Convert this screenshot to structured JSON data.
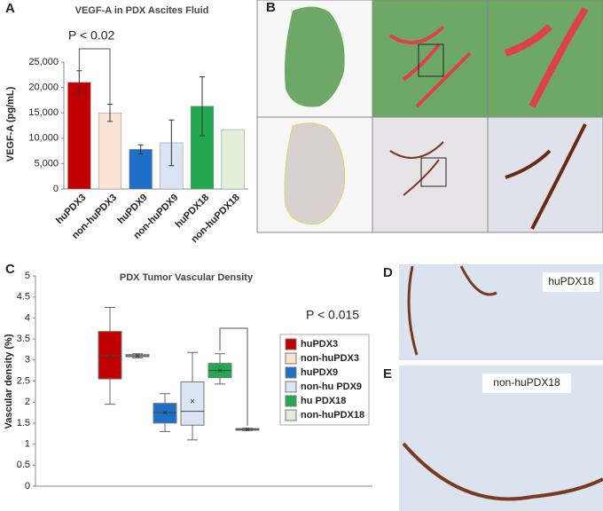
{
  "figure": {
    "panel_labels": [
      "A",
      "B",
      "C",
      "D",
      "E"
    ],
    "image_labels": [
      "huPDX18",
      "non-huPDX18"
    ]
  },
  "chart_data": [
    {
      "type": "bar",
      "title": "VEGF-A in PDX Ascites Fluid",
      "y_label": "VEGF-A (pg/mL)",
      "annotation": "P < 0.02",
      "categories": [
        "huPDX3",
        "non-huPDX3",
        "huPDX9",
        "non-huPDX9",
        "huPDX18",
        "non-huPDX18"
      ],
      "values": [
        21000,
        15000,
        7800,
        9100,
        16300,
        11700
      ],
      "errors": [
        2300,
        1700,
        900,
        4500,
        5800,
        null
      ],
      "colors": [
        "#c00000",
        "#fbe3d5",
        "#1e6fc8",
        "#dae4f3",
        "#22a94f",
        "#e2f0d9"
      ],
      "ylim": [
        0,
        25000
      ],
      "yticks": [
        0,
        {
          "value": 5000,
          "label": "5,000"
        },
        {
          "value": 10000,
          "label": "10,000"
        },
        {
          "value": 15000,
          "label": "15,000"
        },
        {
          "value": 20000,
          "label": "20,000"
        },
        {
          "value": 25000,
          "label": "25,000"
        }
      ]
    },
    {
      "type": "box",
      "title": "PDX Tumor Vascular Density",
      "y_label": "Vascular density (%)",
      "annotation": "P < 0.015",
      "ylim": [
        0,
        5
      ],
      "yticks": [
        0,
        0.5,
        1,
        1.5,
        2,
        2.5,
        3,
        3.5,
        4,
        4.5,
        5
      ],
      "series": [
        {
          "name": "huPDX3",
          "color": "#c00000",
          "min": 1.95,
          "q1": 2.55,
          "median": 3.1,
          "q3": 3.68,
          "max": 4.25,
          "mean": 3.1
        },
        {
          "name": "non-huPDX3",
          "color": "#fbe3d5",
          "min": 3.05,
          "q1": 3.08,
          "median": 3.1,
          "q3": 3.13,
          "max": 3.15,
          "mean": 3.1
        },
        {
          "name": "huPDX9",
          "color": "#1e6fc8",
          "min": 1.3,
          "q1": 1.5,
          "median": 1.75,
          "q3": 1.97,
          "max": 2.2,
          "mean": 1.75
        },
        {
          "name": "non-hu PDX9",
          "color": "#dae4f3",
          "min": 1.1,
          "q1": 1.45,
          "median": 1.78,
          "q3": 2.48,
          "max": 3.18,
          "mean": 2.02
        },
        {
          "name": "hu PDX18",
          "color": "#22a94f",
          "min": 2.43,
          "q1": 2.58,
          "median": 2.75,
          "q3": 2.92,
          "max": 3.15,
          "mean": 2.75
        },
        {
          "name": "non-huPDX18",
          "color": "#e2f0d9",
          "min": 1.32,
          "q1": 1.33,
          "median": 1.35,
          "q3": 1.37,
          "max": 1.38,
          "mean": 1.35
        }
      ]
    }
  ]
}
